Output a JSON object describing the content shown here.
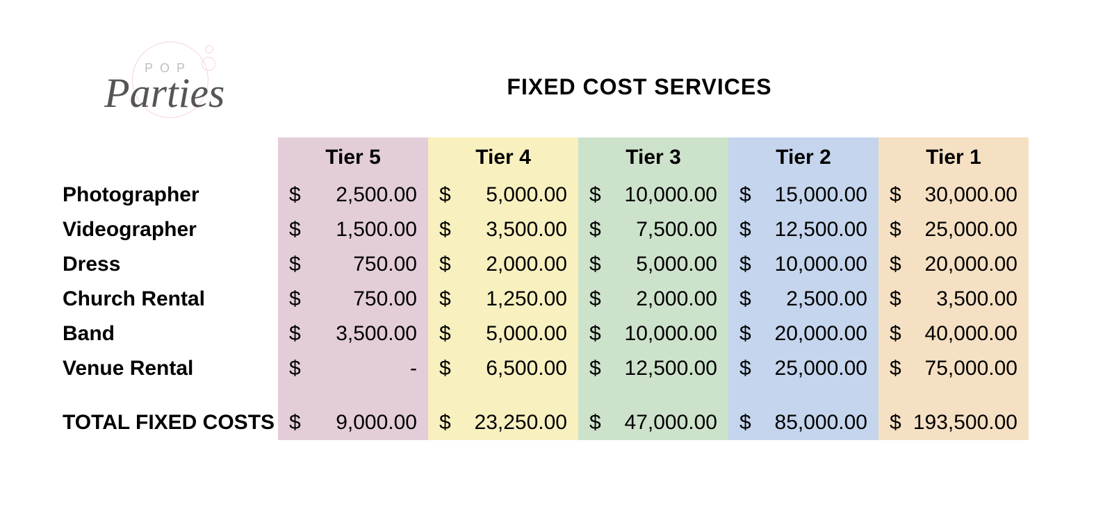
{
  "logo": {
    "pop_text": "POP",
    "script_text": "Parties"
  },
  "title": "FIXED COST SERVICES",
  "table": {
    "columns": [
      {
        "label": "Tier 5",
        "bg_color": "#e3cdd8"
      },
      {
        "label": "Tier 4",
        "bg_color": "#f8f0bf"
      },
      {
        "label": "Tier 3",
        "bg_color": "#cde2cb"
      },
      {
        "label": "Tier 2",
        "bg_color": "#c4d5ed"
      },
      {
        "label": "Tier 1",
        "bg_color": "#f5e0c3"
      }
    ],
    "rows": [
      {
        "label": "Photographer",
        "values": [
          "2,500.00",
          "5,000.00",
          "10,000.00",
          "15,000.00",
          "30,000.00"
        ]
      },
      {
        "label": "Videographer",
        "values": [
          "1,500.00",
          "3,500.00",
          "7,500.00",
          "12,500.00",
          "25,000.00"
        ]
      },
      {
        "label": "Dress",
        "values": [
          "750.00",
          "2,000.00",
          "5,000.00",
          "10,000.00",
          "20,000.00"
        ]
      },
      {
        "label": "Church Rental",
        "values": [
          "750.00",
          "1,250.00",
          "2,000.00",
          "2,500.00",
          "3,500.00"
        ]
      },
      {
        "label": "Band",
        "values": [
          "3,500.00",
          "5,000.00",
          "10,000.00",
          "20,000.00",
          "40,000.00"
        ]
      },
      {
        "label": "Venue Rental",
        "values": [
          "-",
          "6,500.00",
          "12,500.00",
          "25,000.00",
          "75,000.00"
        ]
      }
    ],
    "total": {
      "label": "TOTAL FIXED COSTS",
      "values": [
        "9,000.00",
        "23,250.00",
        "47,000.00",
        "85,000.00",
        "193,500.00"
      ]
    },
    "currency_symbol": "$",
    "text_color": "#000000",
    "background_color": "#ffffff"
  }
}
